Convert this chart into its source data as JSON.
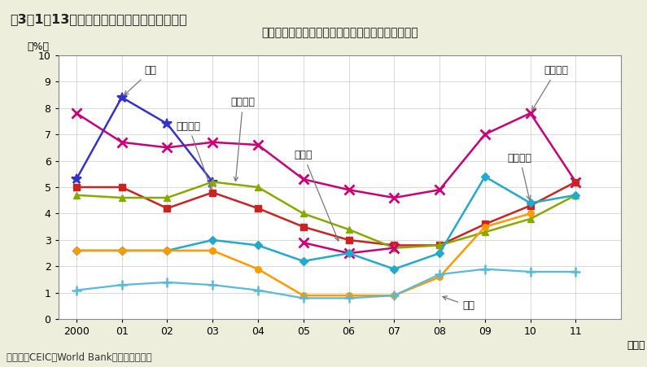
{
  "title_main": "第3－1－13図　主要国の不良債権比率の推移",
  "title_sub": "リーマンショックを機に、不良債権比率は上昇傾向",
  "note": "（備考）CEIC（World Bank）により作成。",
  "ylabel": "（%）",
  "xlabel_suffix": "（年）",
  "years": [
    2000,
    2001,
    2002,
    2003,
    2004,
    2005,
    2006,
    2007,
    2008,
    2009,
    2010,
    2011
  ],
  "background_color": "#eeeedd",
  "header_bg_color": "#c8d49a",
  "plot_bg_color": "#ffffff",
  "euro_y": [
    7.8,
    6.7,
    6.5,
    6.7,
    6.6,
    5.3,
    4.9,
    4.6,
    4.9,
    7.0,
    7.8,
    5.2
  ],
  "japan_y": [
    5.3,
    8.4,
    7.4,
    5.2,
    null,
    null,
    null,
    null,
    null,
    null,
    null,
    null
  ],
  "italia_y": [
    5.0,
    5.0,
    4.2,
    4.8,
    4.2,
    3.5,
    3.0,
    2.8,
    2.8,
    3.6,
    4.3,
    5.2
  ],
  "france_y": [
    4.7,
    4.6,
    4.6,
    5.2,
    5.0,
    4.0,
    3.4,
    2.7,
    2.8,
    3.3,
    3.8,
    4.7
  ],
  "doitsu_y": [
    null,
    null,
    null,
    null,
    null,
    2.9,
    2.5,
    2.7,
    null,
    null,
    null,
    null
  ],
  "america_y": [
    2.6,
    2.6,
    2.6,
    3.0,
    2.8,
    2.2,
    2.5,
    1.9,
    2.5,
    5.4,
    4.4,
    4.7
  ],
  "uk_org_y": [
    2.6,
    2.6,
    2.6,
    2.6,
    1.9,
    0.9,
    0.9,
    0.9,
    1.6,
    3.5,
    4.0,
    null
  ],
  "uk_lite_y": [
    1.1,
    1.3,
    1.4,
    1.3,
    1.1,
    0.8,
    0.8,
    0.9,
    1.7,
    1.9,
    1.8,
    1.8
  ],
  "color_euro": "#cc0077",
  "color_japan": "#3333cc",
  "color_italia": "#cc2222",
  "color_france": "#88aa00",
  "color_america": "#22aacc",
  "color_ukorng": "#ff9900",
  "color_uklite": "#55bbdd"
}
